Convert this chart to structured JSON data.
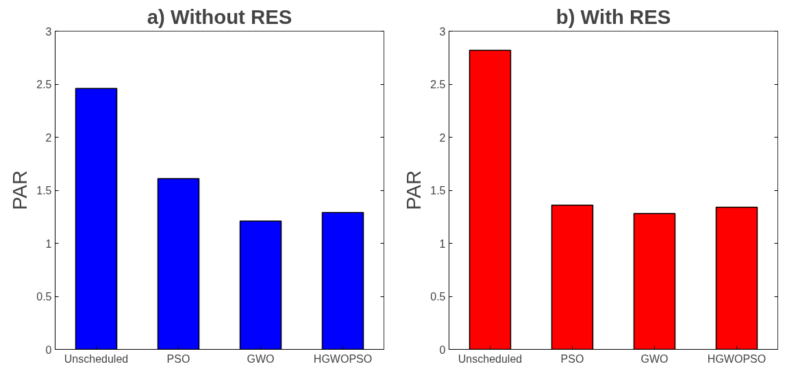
{
  "chart_data": [
    {
      "type": "bar",
      "title": "a) Without RES",
      "ylabel": "PAR",
      "categories": [
        "Unscheduled",
        "PSO",
        "GWO",
        "HGWOPSO"
      ],
      "values": [
        2.46,
        1.61,
        1.21,
        1.29
      ],
      "color": "#0000ff",
      "ylim": [
        0,
        3
      ],
      "yticks": [
        0,
        0.5,
        1,
        1.5,
        2,
        2.5,
        3
      ],
      "grid": false
    },
    {
      "type": "bar",
      "title": "b) With RES",
      "ylabel": "PAR",
      "categories": [
        "Unscheduled",
        "PSO",
        "GWO",
        "HGWOPSO"
      ],
      "values": [
        2.82,
        1.36,
        1.28,
        1.34
      ],
      "color": "#ff0000",
      "ylim": [
        0,
        3
      ],
      "yticks": [
        0,
        0.5,
        1,
        1.5,
        2,
        2.5,
        3
      ],
      "grid": false
    }
  ]
}
